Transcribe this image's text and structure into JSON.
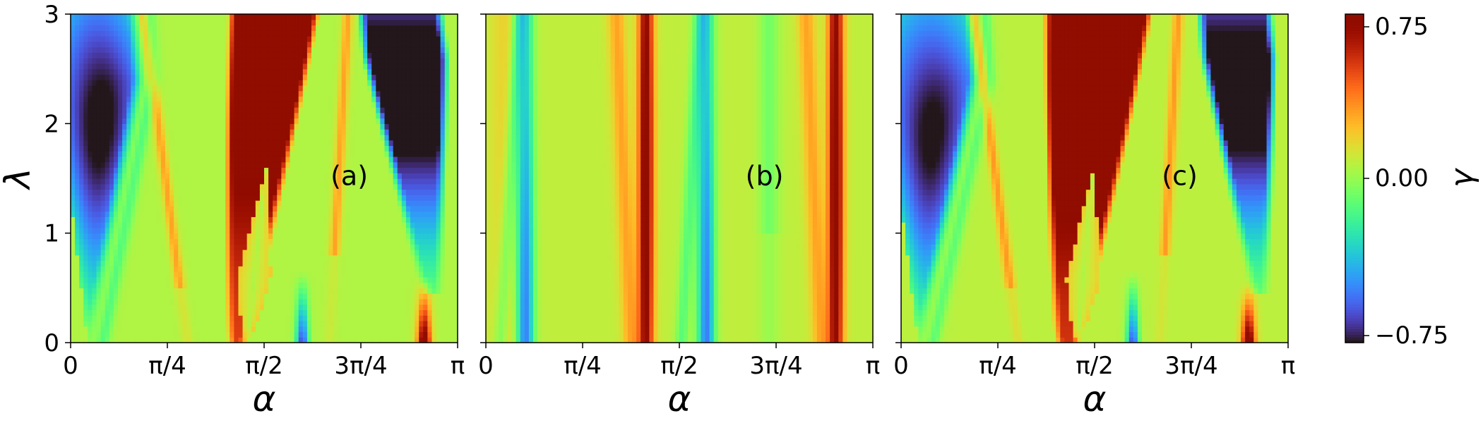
{
  "chart_data": {
    "type": "heatmap",
    "panels": [
      {
        "label": "(a)",
        "xlabel": "α",
        "ylabel": "λ",
        "model": "a"
      },
      {
        "label": "(b)",
        "xlabel": "α",
        "ylabel": "",
        "model": "b"
      },
      {
        "label": "(c)",
        "xlabel": "α",
        "ylabel": "",
        "model": "c"
      }
    ],
    "x_range": [
      0,
      3.14159
    ],
    "y_range": [
      0,
      3
    ],
    "x_ticks": [
      "0",
      "π/4",
      "π/2",
      "3π/4",
      "π"
    ],
    "y_ticks": [
      "0",
      "1",
      "2",
      "3"
    ],
    "colorbar": {
      "label": "γ",
      "range": [
        -0.75,
        0.75
      ],
      "ticks": [
        "0.75",
        "0.00",
        "−0.75"
      ],
      "colormap": "turbo"
    },
    "features": {
      "a": {
        "blue_left": {
          "a0": 0.15,
          "slope": -0.06,
          "width": 0.55,
          "peak_lambda": 2.0
        },
        "red_center": {
          "a0": 1.35,
          "a_top": 1.65,
          "width_bottom": 0.08,
          "width_top": 0.38,
          "peak_lambda": 2.3
        },
        "blue_right": {
          "a0": 2.98,
          "slope": -0.1,
          "width": 0.32,
          "peak_lambda": 2.3
        },
        "red_small": {
          "center": 2.87,
          "lambda_max": 0.6
        }
      },
      "b": {
        "blue_stripes": [
          0.32,
          1.79
        ],
        "red_stripes": [
          1.3,
          2.84
        ]
      },
      "c": {
        "blue_left": {
          "a0": 0.15,
          "slope": -0.06,
          "width": 0.6,
          "peak_lambda": 1.9
        },
        "red_center": {
          "a0": 1.35,
          "a_top": 1.6,
          "width_bottom": 0.1,
          "width_top": 0.45,
          "peak_lambda": 2.1
        },
        "blue_right": {
          "a0": 2.95,
          "slope": -0.08,
          "width": 0.28,
          "peak_lambda": 2.3
        },
        "red_small": {
          "center": 2.82,
          "lambda_max": 0.55
        }
      }
    }
  }
}
